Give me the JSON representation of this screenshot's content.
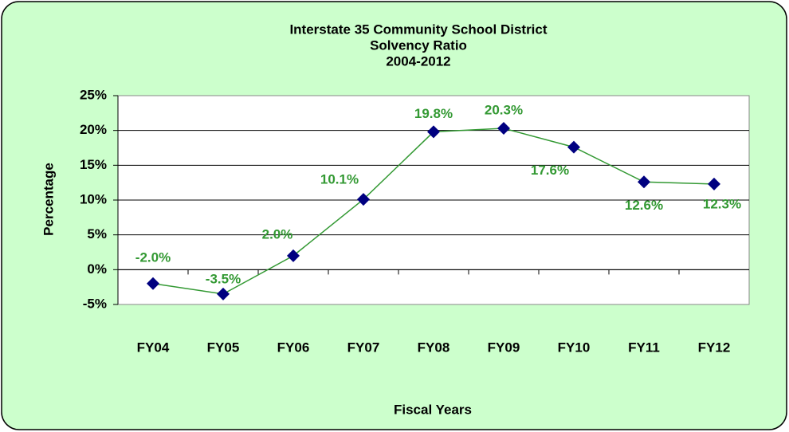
{
  "chart_data": {
    "type": "line",
    "title": [
      "Interstate 35 Community School District",
      "Solvency Ratio",
      "2004-2012"
    ],
    "x_label": "Fiscal Years",
    "y_label": "Percentage",
    "categories": [
      "FY04",
      "FY05",
      "FY06",
      "FY07",
      "FY08",
      "FY09",
      "FY10",
      "FY11",
      "FY12"
    ],
    "series": [
      {
        "name": "Solvency Ratio",
        "color": "#339933",
        "marker_color": "#000080",
        "values": [
          -2.0,
          -3.5,
          2.0,
          10.1,
          19.8,
          20.3,
          17.6,
          12.6,
          12.3
        ],
        "value_labels": [
          "-2.0%",
          "-3.5%",
          "2.0%",
          "10.1%",
          "19.8%",
          "20.3%",
          "17.6%",
          "12.6%",
          "12.3%"
        ]
      }
    ],
    "ylim": [
      -5,
      25
    ],
    "yticks": [
      {
        "value": -5,
        "label": "-5%"
      },
      {
        "value": 0,
        "label": "0%"
      },
      {
        "value": 5,
        "label": "5%"
      },
      {
        "value": 10,
        "label": "10%"
      },
      {
        "value": 15,
        "label": "15%"
      },
      {
        "value": 20,
        "label": "20%"
      },
      {
        "value": 25,
        "label": "25%"
      }
    ],
    "grid": true
  }
}
